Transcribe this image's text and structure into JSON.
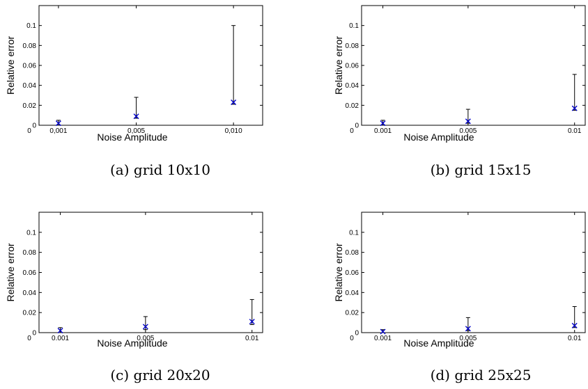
{
  "chart_data": [
    {
      "type": "scatter",
      "caption": "(a) grid 10x10",
      "xlabel": "Noise Amplitude",
      "ylabel": "Relative error",
      "xlim": [
        0,
        0.0115
      ],
      "ylim": [
        0,
        0.12
      ],
      "xticks": [
        0,
        0.001,
        0.005,
        0.01
      ],
      "xtick_labels": [
        "0",
        "0,001",
        "0,005",
        "0,010"
      ],
      "yticks": [
        0,
        0.02,
        0.04,
        0.06,
        0.08,
        0.1
      ],
      "ytick_labels": [
        "0",
        "0.02",
        "0.04",
        "0.06",
        "0.08",
        "0.1"
      ],
      "series": [
        {
          "x": [
            0.001,
            0.005,
            0.01
          ],
          "y": [
            0.002,
            0.009,
            0.023
          ],
          "err_low": [
            0.0,
            0.007,
            0.021
          ],
          "err_high": [
            0.005,
            0.028,
            0.1
          ]
        }
      ]
    },
    {
      "type": "scatter",
      "caption": "(b) grid 15x15",
      "xlabel": "Noise Amplitude",
      "ylabel": "Relative error",
      "xlim": [
        0,
        0.0105
      ],
      "ylim": [
        0,
        0.12
      ],
      "xticks": [
        0,
        0.001,
        0.005,
        0.01
      ],
      "xtick_labels": [
        "0",
        "0.001",
        "0.005",
        "0.01"
      ],
      "yticks": [
        0,
        0.02,
        0.04,
        0.06,
        0.08,
        0.1
      ],
      "ytick_labels": [
        "0",
        "0.02",
        "0.04",
        "0.06",
        "0.08",
        "0.1"
      ],
      "series": [
        {
          "x": [
            0.001,
            0.005,
            0.01
          ],
          "y": [
            0.002,
            0.004,
            0.017
          ],
          "err_low": [
            0.0,
            0.002,
            0.015
          ],
          "err_high": [
            0.005,
            0.016,
            0.051
          ]
        }
      ]
    },
    {
      "type": "scatter",
      "caption": "(c) grid 20x20",
      "xlabel": "Noise Amplitude",
      "ylabel": "Relative error",
      "xlim": [
        0,
        0.0105
      ],
      "ylim": [
        0,
        0.12
      ],
      "xticks": [
        0,
        0.001,
        0.005,
        0.01
      ],
      "xtick_labels": [
        "0",
        "0.001",
        "0.005",
        "0.01"
      ],
      "yticks": [
        0,
        0.02,
        0.04,
        0.06,
        0.08,
        0.1
      ],
      "ytick_labels": [
        "0",
        "0.02",
        "0.04",
        "0.06",
        "0.08",
        "0.1"
      ],
      "series": [
        {
          "x": [
            0.001,
            0.005,
            0.01
          ],
          "y": [
            0.002,
            0.006,
            0.011
          ],
          "err_low": [
            0.0,
            0.003,
            0.008
          ],
          "err_high": [
            0.005,
            0.016,
            0.033
          ]
        }
      ]
    },
    {
      "type": "scatter",
      "caption": "(d) grid 25x25",
      "xlabel": "Noise Amplitude",
      "ylabel": "Relative error",
      "xlim": [
        0,
        0.0105
      ],
      "ylim": [
        0,
        0.12
      ],
      "xticks": [
        0,
        0.001,
        0.005,
        0.01
      ],
      "xtick_labels": [
        "0",
        "0.001",
        "0.005",
        "0.01"
      ],
      "yticks": [
        0,
        0.02,
        0.04,
        0.06,
        0.08,
        0.1
      ],
      "ytick_labels": [
        "0",
        "0.02",
        "0.04",
        "0.06",
        "0.08",
        "0.1"
      ],
      "series": [
        {
          "x": [
            0.001,
            0.005,
            0.01
          ],
          "y": [
            0.001,
            0.004,
            0.007
          ],
          "err_low": [
            0.0,
            0.002,
            0.005
          ],
          "err_high": [
            0.003,
            0.015,
            0.026
          ]
        }
      ]
    }
  ],
  "colors": {
    "marker": "#0000cc",
    "errorbar": "#000000",
    "axes": "#000000"
  }
}
